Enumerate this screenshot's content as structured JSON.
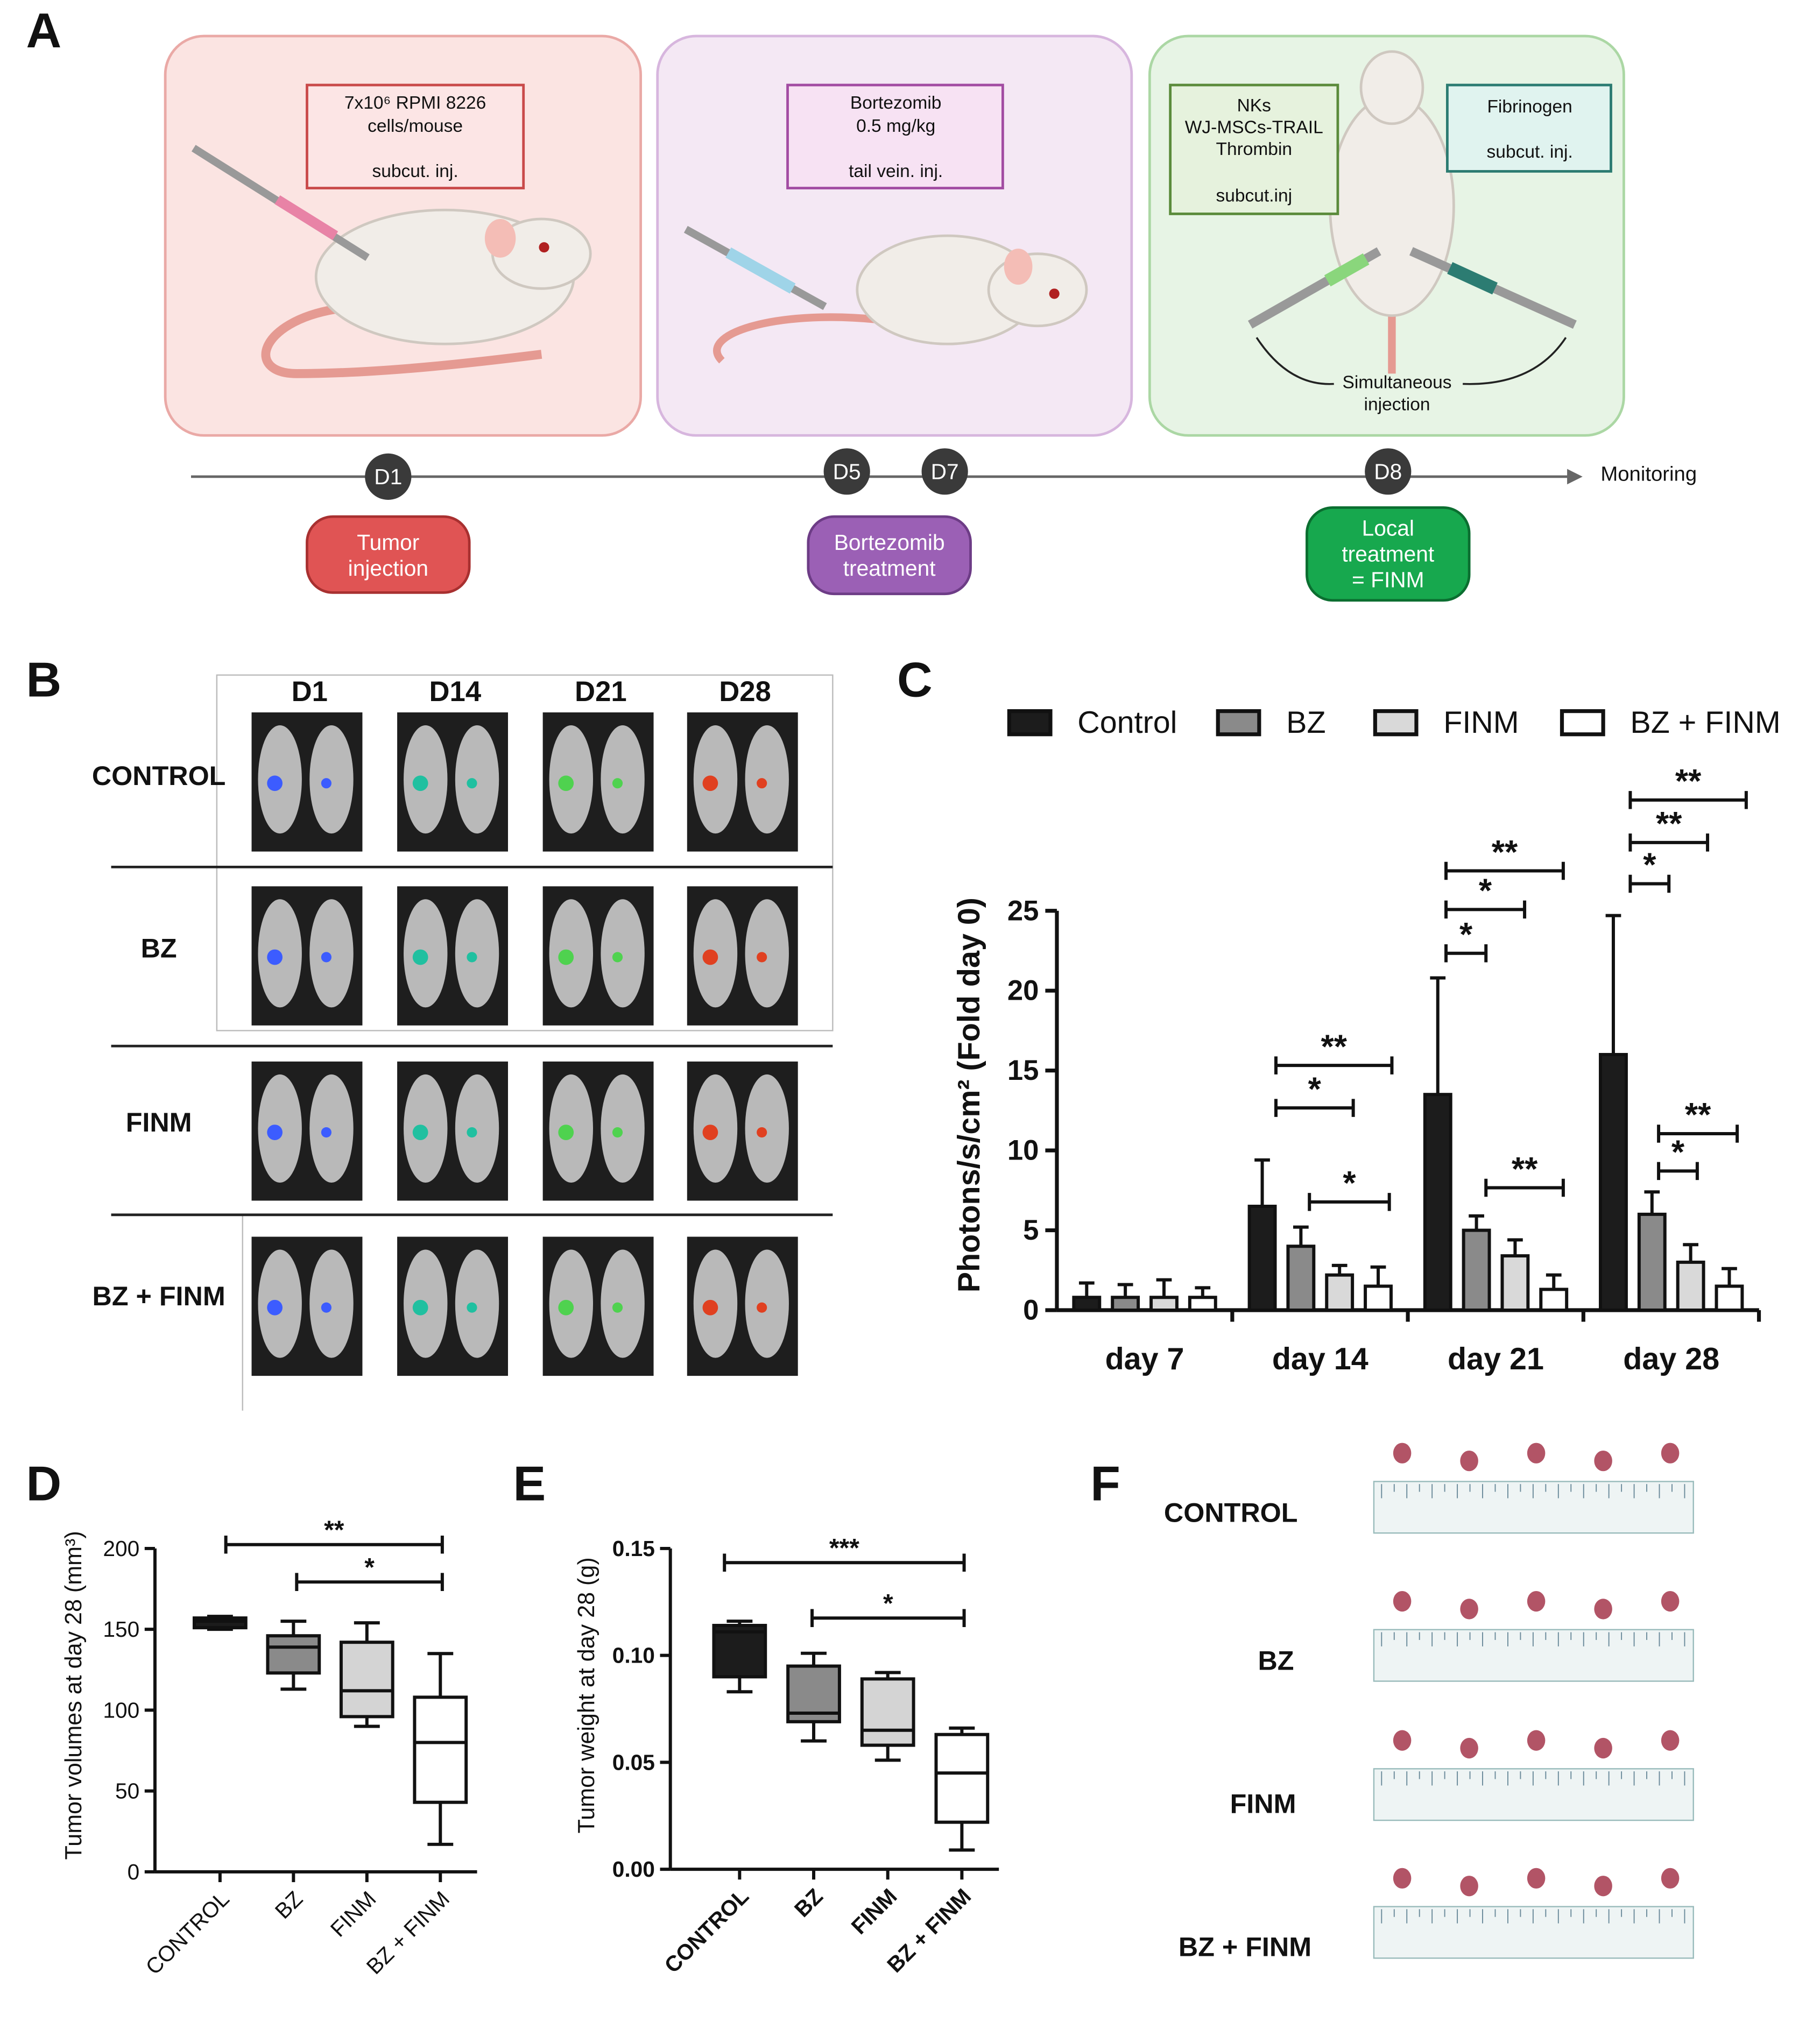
{
  "panel_labels": [
    "A",
    "B",
    "C",
    "D",
    "E",
    "F"
  ],
  "panel_a": {
    "tumor_box": [
      "7x10⁶ RPMI 8226",
      "cells/mouse",
      "subcut. inj."
    ],
    "bz_box": [
      "Bortezomib",
      "0.5 mg/kg",
      "tail vein. inj."
    ],
    "finm_box": [
      "NKs",
      "WJ-MSCs-TRAIL",
      "Thrombin",
      "subcut.inj"
    ],
    "fibrinogen_box": [
      "Fibrinogen",
      "subcut. inj."
    ],
    "simultaneous": [
      "Simultaneous",
      "injection"
    ],
    "timeline": [
      "D1",
      "D5",
      "D7",
      "D8"
    ],
    "monitoring": "Monitoring",
    "steps": [
      [
        "Tumor",
        "injection"
      ],
      [
        "Bortezomib",
        "treatment"
      ],
      [
        "Local",
        "treatment",
        "= FINM"
      ]
    ]
  },
  "panel_b": {
    "columns": [
      "D1",
      "D14",
      "D21",
      "D28"
    ],
    "rows": [
      "CONTROL",
      "BZ",
      "FINM",
      "BZ + FINM"
    ]
  },
  "panel_f": {
    "rows": [
      "CONTROL",
      "BZ",
      "FINM",
      "BZ + FINM"
    ]
  },
  "chart_data": [
    {
      "type": "bar",
      "ylabel": "Photons/s/cm² (Fold day 0)",
      "categories": [
        "day 7",
        "day 14",
        "day 21",
        "day 28"
      ],
      "series": [
        {
          "name": "Control",
          "color": "#1c1c1c",
          "values": [
            0.8,
            6.5,
            13.5,
            16.0
          ],
          "errors": [
            0.9,
            2.9,
            7.3,
            8.7
          ]
        },
        {
          "name": "BZ",
          "color": "#8a8a8a",
          "values": [
            0.8,
            4.0,
            5.0,
            6.0
          ],
          "errors": [
            0.8,
            1.2,
            0.9,
            1.4
          ]
        },
        {
          "name": "FINM",
          "color": "#d9d9d9",
          "values": [
            0.8,
            2.2,
            3.4,
            3.0
          ],
          "errors": [
            1.1,
            0.6,
            1.0,
            1.1
          ]
        },
        {
          "name": "BZ + FINM",
          "color": "#ffffff",
          "values": [
            0.8,
            1.5,
            1.3,
            1.5
          ],
          "errors": [
            0.6,
            1.2,
            0.9,
            1.1
          ]
        }
      ],
      "ylim": [
        0,
        25
      ],
      "yticks": [
        0,
        5,
        10,
        15,
        20,
        25
      ],
      "significance": [
        "**",
        "*",
        "*",
        "**",
        "*",
        "*",
        "**",
        "**",
        "**",
        "*",
        "**",
        "*"
      ]
    },
    {
      "type": "box",
      "ylabel": "Tumor volumes at day 28 (mm³)",
      "categories": [
        "CONTROL",
        "BZ",
        "FINM",
        "BZ + FINM"
      ],
      "colors": [
        "#1c1c1c",
        "#8a8a8a",
        "#d4d4d4",
        "#ffffff"
      ],
      "boxes": [
        {
          "min": 150,
          "q1": 151,
          "median": 155,
          "q3": 157,
          "max": 158
        },
        {
          "min": 113,
          "q1": 123,
          "median": 139,
          "q3": 146,
          "max": 155
        },
        {
          "min": 90,
          "q1": 96,
          "median": 112,
          "q3": 142,
          "max": 154
        },
        {
          "min": 17,
          "q1": 43,
          "median": 80,
          "q3": 108,
          "max": 135
        }
      ],
      "ylim": [
        0,
        200
      ],
      "yticks": [
        0,
        50,
        100,
        150,
        200
      ],
      "significance": [
        "**",
        "*"
      ]
    },
    {
      "type": "box",
      "ylabel": "Tumor weight at day 28 (g)",
      "categories": [
        "CONTROL",
        "BZ",
        "FINM",
        "BZ + FINM"
      ],
      "colors": [
        "#1c1c1c",
        "#8a8a8a",
        "#d4d4d4",
        "#ffffff"
      ],
      "boxes": [
        {
          "min": 0.083,
          "q1": 0.09,
          "median": 0.111,
          "q3": 0.114,
          "max": 0.116
        },
        {
          "min": 0.06,
          "q1": 0.069,
          "median": 0.073,
          "q3": 0.095,
          "max": 0.101
        },
        {
          "min": 0.051,
          "q1": 0.058,
          "median": 0.065,
          "q3": 0.089,
          "max": 0.092
        },
        {
          "min": 0.009,
          "q1": 0.022,
          "median": 0.045,
          "q3": 0.063,
          "max": 0.066
        }
      ],
      "ylim": [
        0,
        0.15
      ],
      "yticks": [
        {
          "value": 0,
          "label": "0.00"
        },
        {
          "value": 0.05,
          "label": "0.05"
        },
        {
          "value": 0.1,
          "label": "0.10"
        },
        {
          "value": 0.15,
          "label": "0.15"
        }
      ],
      "significance": [
        "***",
        "*"
      ]
    }
  ]
}
